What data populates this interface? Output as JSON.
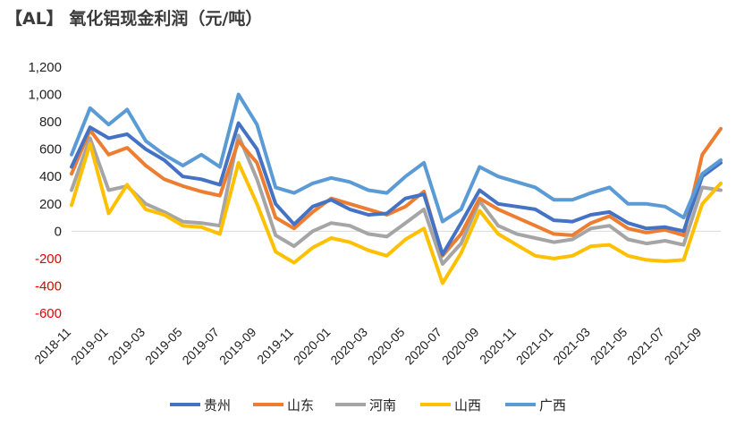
{
  "title": "【AL】 氧化铝现金利润（元/吨）",
  "colors": {
    "贵州": "#4472C4",
    "山东": "#ED7D31",
    "河南": "#A5A5A5",
    "山西": "#FFC000",
    "广西": "#5B9BD5",
    "negative_tick": "#E00000",
    "positive_tick": "#222222"
  },
  "chart_data": {
    "type": "line",
    "title": "【AL】 氧化铝现金利润（元/吨）",
    "xlabel": "",
    "ylabel": "",
    "ylim": [
      -600,
      1200
    ],
    "y_ticks": [
      "1,200",
      "1,000",
      "800",
      "600",
      "400",
      "200",
      "0",
      "-200",
      "-400",
      "-600"
    ],
    "y_tick_values": [
      1200,
      1000,
      800,
      600,
      400,
      200,
      0,
      -200,
      -400,
      -600
    ],
    "x_ticks": [
      "2018-11",
      "2019-01",
      "2019-03",
      "2019-05",
      "2019-07",
      "2019-09",
      "2019-11",
      "2020-01",
      "2020-03",
      "2020-05",
      "2020-07",
      "2020-09",
      "2020-11",
      "2021-01",
      "2021-03",
      "2021-05",
      "2021-07",
      "2021-09"
    ],
    "x": [
      "2018-11",
      "2018-12",
      "2019-01",
      "2019-02",
      "2019-03",
      "2019-04",
      "2019-05",
      "2019-06",
      "2019-07",
      "2019-08",
      "2019-09",
      "2019-10",
      "2019-11",
      "2019-12",
      "2020-01",
      "2020-02",
      "2020-03",
      "2020-04",
      "2020-05",
      "2020-06",
      "2020-07",
      "2020-08",
      "2020-09",
      "2020-10",
      "2020-11",
      "2020-12",
      "2021-01",
      "2021-02",
      "2021-03",
      "2021-04",
      "2021-05",
      "2021-06",
      "2021-07",
      "2021-08",
      "2021-09",
      "2021-10"
    ],
    "grid": false,
    "legend_position": "bottom",
    "series": [
      {
        "name": "贵州",
        "values": [
          470,
          760,
          680,
          710,
          600,
          520,
          400,
          380,
          340,
          790,
          600,
          200,
          50,
          180,
          230,
          160,
          120,
          130,
          240,
          270,
          -170,
          60,
          300,
          200,
          180,
          160,
          80,
          70,
          120,
          140,
          60,
          20,
          30,
          0,
          400,
          500
        ]
      },
      {
        "name": "山东",
        "values": [
          420,
          740,
          560,
          610,
          480,
          380,
          330,
          290,
          260,
          660,
          500,
          100,
          20,
          140,
          240,
          200,
          160,
          120,
          180,
          290,
          -180,
          -20,
          240,
          160,
          100,
          40,
          -20,
          -30,
          60,
          110,
          20,
          -10,
          10,
          -30,
          560,
          750
        ]
      },
      {
        "name": "河南",
        "values": [
          300,
          680,
          300,
          330,
          200,
          140,
          70,
          60,
          40,
          700,
          380,
          -30,
          -110,
          0,
          60,
          40,
          -20,
          -40,
          60,
          160,
          -240,
          -90,
          220,
          40,
          -20,
          -50,
          -80,
          -60,
          20,
          40,
          -60,
          -90,
          -70,
          -100,
          320,
          300
        ]
      },
      {
        "name": "山西",
        "values": [
          190,
          640,
          130,
          340,
          160,
          120,
          40,
          30,
          -20,
          500,
          200,
          -150,
          -230,
          -120,
          -50,
          -80,
          -140,
          -180,
          -60,
          20,
          -380,
          -160,
          150,
          -20,
          -100,
          -180,
          -200,
          -180,
          -110,
          -100,
          -180,
          -210,
          -220,
          -210,
          200,
          350
        ]
      },
      {
        "name": "广西",
        "values": [
          560,
          900,
          780,
          890,
          660,
          560,
          480,
          560,
          470,
          1000,
          780,
          320,
          280,
          350,
          390,
          360,
          300,
          280,
          400,
          500,
          70,
          160,
          470,
          400,
          360,
          320,
          230,
          230,
          280,
          320,
          200,
          200,
          180,
          100,
          420,
          520
        ]
      }
    ]
  }
}
